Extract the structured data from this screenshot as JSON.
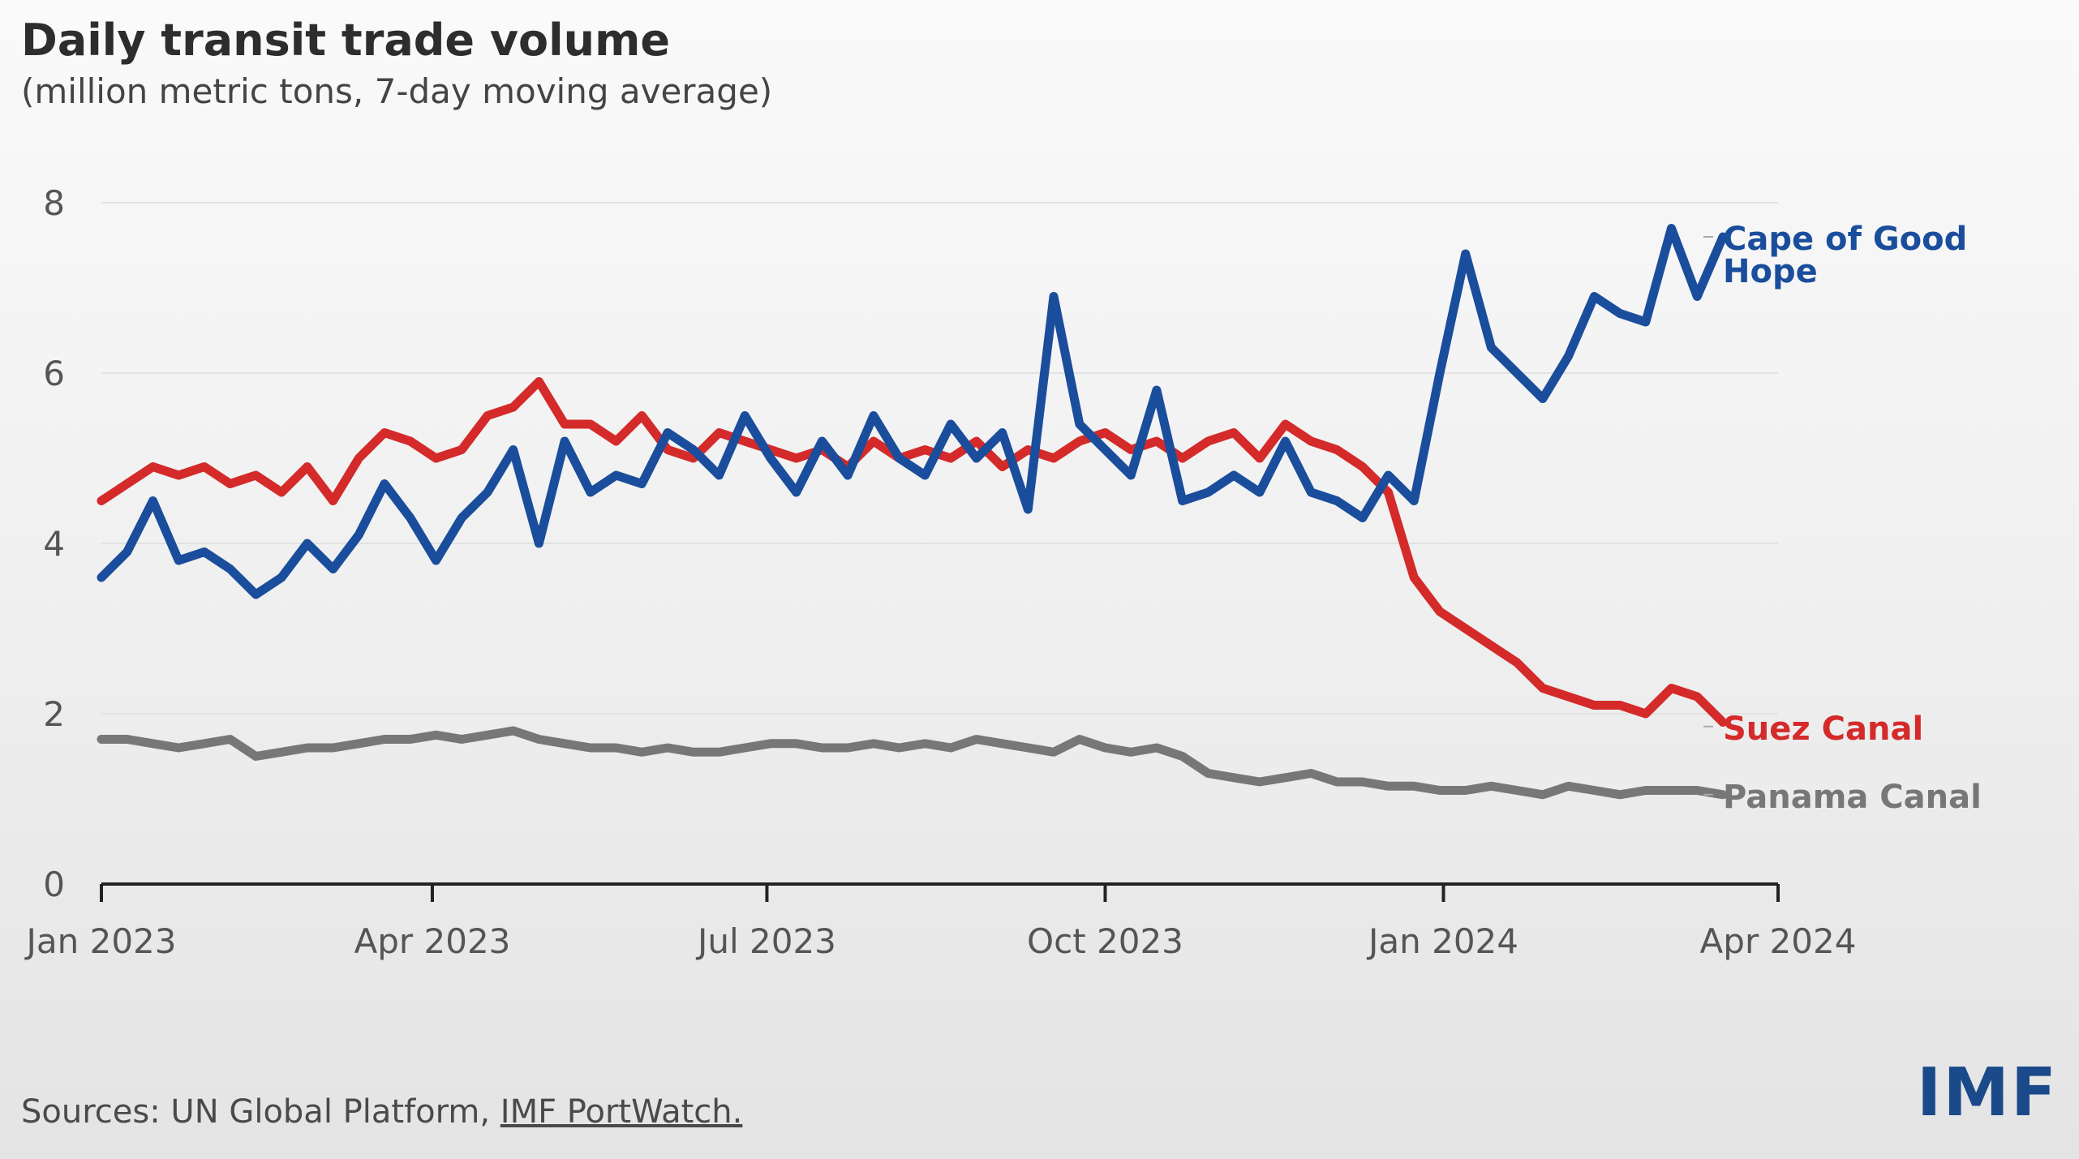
{
  "header": {
    "title": "Daily transit trade volume",
    "subtitle": "(million metric tons, 7-day moving average)"
  },
  "footer": {
    "source_prefix": "Sources: UN Global Platform, ",
    "source_link": "IMF PortWatch."
  },
  "brand": {
    "logo_text": "IMF",
    "logo_color": "#1a4a8a"
  },
  "chart_data": {
    "type": "line",
    "title": "Daily transit trade volume",
    "subtitle": "(million metric tons, 7-day moving average)",
    "xlabel": "",
    "ylabel": "",
    "x_ticks": [
      "Jan 2023",
      "Apr 2023",
      "Jul 2023",
      "Oct 2023",
      "Jan 2024",
      "Apr 2024"
    ],
    "x_tick_dates": [
      "2023-01-01",
      "2023-04-01",
      "2023-07-01",
      "2023-10-01",
      "2024-01-01",
      "2024-04-01"
    ],
    "xlim": [
      "2023-01-01",
      "2024-04-01"
    ],
    "y_ticks": [
      0,
      2,
      4,
      6,
      8
    ],
    "ylim": [
      0,
      8
    ],
    "grid": "horizontal",
    "legend": "direct labels at right end of lines",
    "series": [
      {
        "name": "Cape of Good Hope",
        "color": "#1a4e9c",
        "dates": [
          "2023-01-01",
          "2023-01-08",
          "2023-01-15",
          "2023-01-22",
          "2023-01-29",
          "2023-02-05",
          "2023-02-12",
          "2023-02-19",
          "2023-02-26",
          "2023-03-05",
          "2023-03-12",
          "2023-03-19",
          "2023-03-26",
          "2023-04-02",
          "2023-04-09",
          "2023-04-16",
          "2023-04-23",
          "2023-04-30",
          "2023-05-07",
          "2023-05-14",
          "2023-05-21",
          "2023-05-28",
          "2023-06-04",
          "2023-06-11",
          "2023-06-18",
          "2023-06-25",
          "2023-07-02",
          "2023-07-09",
          "2023-07-16",
          "2023-07-23",
          "2023-07-30",
          "2023-08-06",
          "2023-08-13",
          "2023-08-20",
          "2023-08-27",
          "2023-09-03",
          "2023-09-10",
          "2023-09-17",
          "2023-09-24",
          "2023-10-01",
          "2023-10-08",
          "2023-10-15",
          "2023-10-22",
          "2023-10-29",
          "2023-11-05",
          "2023-11-12",
          "2023-11-19",
          "2023-11-26",
          "2023-12-03",
          "2023-12-10",
          "2023-12-17",
          "2023-12-24",
          "2023-12-31",
          "2024-01-07",
          "2024-01-14",
          "2024-01-21",
          "2024-01-28",
          "2024-02-04",
          "2024-02-11",
          "2024-02-18",
          "2024-02-25",
          "2024-03-03",
          "2024-03-10",
          "2024-03-17"
        ],
        "values": [
          3.6,
          3.9,
          4.5,
          3.8,
          3.9,
          3.7,
          3.4,
          3.6,
          4.0,
          3.7,
          4.1,
          4.7,
          4.3,
          3.8,
          4.3,
          4.6,
          5.1,
          4.0,
          5.2,
          4.6,
          4.8,
          4.7,
          5.3,
          5.1,
          4.8,
          5.5,
          5.0,
          4.6,
          5.2,
          4.8,
          5.5,
          5.0,
          4.8,
          5.4,
          5.0,
          5.3,
          4.4,
          6.9,
          5.4,
          5.1,
          4.8,
          5.8,
          4.5,
          4.6,
          4.8,
          4.6,
          5.2,
          4.6,
          4.5,
          4.3,
          4.8,
          4.5,
          6.0,
          7.4,
          6.3,
          6.0,
          5.7,
          6.2,
          6.9,
          6.7,
          6.6,
          7.7,
          6.9,
          7.6
        ]
      },
      {
        "name": "Suez Canal",
        "color": "#d42a2a",
        "dates": [
          "2023-01-01",
          "2023-01-08",
          "2023-01-15",
          "2023-01-22",
          "2023-01-29",
          "2023-02-05",
          "2023-02-12",
          "2023-02-19",
          "2023-02-26",
          "2023-03-05",
          "2023-03-12",
          "2023-03-19",
          "2023-03-26",
          "2023-04-02",
          "2023-04-09",
          "2023-04-16",
          "2023-04-23",
          "2023-04-30",
          "2023-05-07",
          "2023-05-14",
          "2023-05-21",
          "2023-05-28",
          "2023-06-04",
          "2023-06-11",
          "2023-06-18",
          "2023-06-25",
          "2023-07-02",
          "2023-07-09",
          "2023-07-16",
          "2023-07-23",
          "2023-07-30",
          "2023-08-06",
          "2023-08-13",
          "2023-08-20",
          "2023-08-27",
          "2023-09-03",
          "2023-09-10",
          "2023-09-17",
          "2023-09-24",
          "2023-10-01",
          "2023-10-08",
          "2023-10-15",
          "2023-10-22",
          "2023-10-29",
          "2023-11-05",
          "2023-11-12",
          "2023-11-19",
          "2023-11-26",
          "2023-12-03",
          "2023-12-10",
          "2023-12-17",
          "2023-12-24",
          "2023-12-31",
          "2024-01-07",
          "2024-01-14",
          "2024-01-21",
          "2024-01-28",
          "2024-02-04",
          "2024-02-11",
          "2024-02-18",
          "2024-02-25",
          "2024-03-03",
          "2024-03-10",
          "2024-03-17"
        ],
        "values": [
          4.5,
          4.7,
          4.9,
          4.8,
          4.9,
          4.7,
          4.8,
          4.6,
          4.9,
          4.5,
          5.0,
          5.3,
          5.2,
          5.0,
          5.1,
          5.5,
          5.6,
          5.9,
          5.4,
          5.4,
          5.2,
          5.5,
          5.1,
          5.0,
          5.3,
          5.2,
          5.1,
          5.0,
          5.1,
          4.9,
          5.2,
          5.0,
          5.1,
          5.0,
          5.2,
          4.9,
          5.1,
          5.0,
          5.2,
          5.3,
          5.1,
          5.2,
          5.0,
          5.2,
          5.3,
          5.0,
          5.4,
          5.2,
          5.1,
          4.9,
          4.6,
          3.6,
          3.2,
          3.0,
          2.8,
          2.6,
          2.3,
          2.2,
          2.1,
          2.1,
          2.0,
          2.3,
          2.2,
          1.9
        ]
      },
      {
        "name": "Panama Canal",
        "color": "#777777",
        "dates": [
          "2023-01-01",
          "2023-01-08",
          "2023-01-15",
          "2023-01-22",
          "2023-01-29",
          "2023-02-05",
          "2023-02-12",
          "2023-02-19",
          "2023-02-26",
          "2023-03-05",
          "2023-03-12",
          "2023-03-19",
          "2023-03-26",
          "2023-04-02",
          "2023-04-09",
          "2023-04-16",
          "2023-04-23",
          "2023-04-30",
          "2023-05-07",
          "2023-05-14",
          "2023-05-21",
          "2023-05-28",
          "2023-06-04",
          "2023-06-11",
          "2023-06-18",
          "2023-06-25",
          "2023-07-02",
          "2023-07-09",
          "2023-07-16",
          "2023-07-23",
          "2023-07-30",
          "2023-08-06",
          "2023-08-13",
          "2023-08-20",
          "2023-08-27",
          "2023-09-03",
          "2023-09-10",
          "2023-09-17",
          "2023-09-24",
          "2023-10-01",
          "2023-10-08",
          "2023-10-15",
          "2023-10-22",
          "2023-10-29",
          "2023-11-05",
          "2023-11-12",
          "2023-11-19",
          "2023-11-26",
          "2023-12-03",
          "2023-12-10",
          "2023-12-17",
          "2023-12-24",
          "2023-12-31",
          "2024-01-07",
          "2024-01-14",
          "2024-01-21",
          "2024-01-28",
          "2024-02-04",
          "2024-02-11",
          "2024-02-18",
          "2024-02-25",
          "2024-03-03",
          "2024-03-10",
          "2024-03-17"
        ],
        "values": [
          1.7,
          1.7,
          1.65,
          1.6,
          1.65,
          1.7,
          1.5,
          1.55,
          1.6,
          1.6,
          1.65,
          1.7,
          1.7,
          1.75,
          1.7,
          1.75,
          1.8,
          1.7,
          1.65,
          1.6,
          1.6,
          1.55,
          1.6,
          1.55,
          1.55,
          1.6,
          1.65,
          1.65,
          1.6,
          1.6,
          1.65,
          1.6,
          1.65,
          1.6,
          1.7,
          1.65,
          1.6,
          1.55,
          1.7,
          1.6,
          1.55,
          1.6,
          1.5,
          1.3,
          1.25,
          1.2,
          1.25,
          1.3,
          1.2,
          1.2,
          1.15,
          1.15,
          1.1,
          1.1,
          1.15,
          1.1,
          1.05,
          1.15,
          1.1,
          1.05,
          1.1,
          1.1,
          1.1,
          1.05
        ]
      }
    ],
    "end_labels": [
      {
        "series": "Cape of Good Hope",
        "lines": [
          "Cape of Good",
          "Hope"
        ],
        "y_value": 7.6
      },
      {
        "series": "Suez Canal",
        "lines": [
          "Suez Canal"
        ],
        "y_value": 1.85
      },
      {
        "series": "Panama Canal",
        "lines": [
          "Panama Canal"
        ],
        "y_value": 1.05
      }
    ]
  }
}
